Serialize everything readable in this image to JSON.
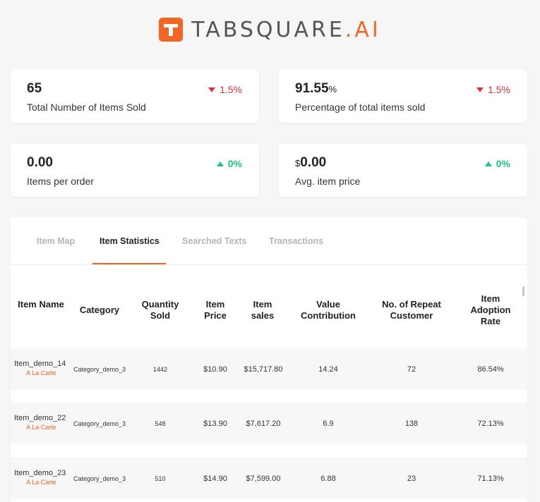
{
  "brand": {
    "name": "TABSQUARE",
    "suffix": ".AI",
    "accent": "#f26522"
  },
  "kpis": [
    {
      "value": "65",
      "unit": "",
      "prefix": "",
      "label": "Total Number of Items Sold",
      "delta": "1.5%",
      "trend": "down"
    },
    {
      "value": "91.55",
      "unit": "%",
      "prefix": "",
      "label": "Percentage of total items sold",
      "delta": "1.5%",
      "trend": "down"
    },
    {
      "value": "0.00",
      "unit": "",
      "prefix": "",
      "label": "Items per order",
      "delta": "0%",
      "trend": "up"
    },
    {
      "value": "0.00",
      "unit": "",
      "prefix": "$",
      "label": "Avg. item price",
      "delta": "0%",
      "trend": "up"
    }
  ],
  "tabs": [
    {
      "label": "Item Map",
      "active": false
    },
    {
      "label": "Item Statistics",
      "active": true
    },
    {
      "label": "Searched Texts",
      "active": false
    },
    {
      "label": "Transactions",
      "active": false
    }
  ],
  "table": {
    "headers": [
      "Item Name",
      "Category",
      "Quantity Sold",
      "Item Price",
      "Item sales",
      "Value Contribution",
      "No. of Repeat Customer",
      "Item Adoption Rate"
    ],
    "rows": [
      {
        "name": "Item_demo_14",
        "type": "A La Carte",
        "category": "Category_demo_3",
        "qty": "1442",
        "price": "$10.90",
        "sales": "$15,717.80",
        "contribution": "14.24",
        "repeat": "72",
        "adoption": "86.54%"
      },
      {
        "name": "Item_demo_22",
        "type": "A La Carte",
        "category": "Category_demo_3",
        "qty": "548",
        "price": "$13.90",
        "sales": "$7,617.20",
        "contribution": "6.9",
        "repeat": "138",
        "adoption": "72.13%"
      },
      {
        "name": "Item_demo_23",
        "type": "A La Carte",
        "category": "Category_demo_3",
        "qty": "510",
        "price": "$14.90",
        "sales": "$7,599.00",
        "contribution": "6.88",
        "repeat": "23",
        "adoption": "71.13%"
      }
    ]
  },
  "colors": {
    "down": "#e0323b",
    "up": "#1fc487",
    "accent": "#f26522"
  }
}
